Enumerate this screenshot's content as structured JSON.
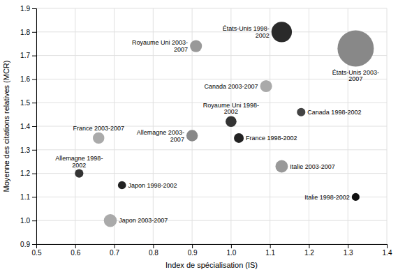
{
  "chart_data": {
    "type": "scatter",
    "xlabel": "Index de spécialisation (IS)",
    "ylabel": "Moyenne des citations relatives (MCR)",
    "annotations": [
      "États-Unis 1998-\n2002",
      "États-Unis 2003-\n2007",
      "Royaume Uni 2003-\n2007",
      "Canada 2003-2007",
      "Canada 1998-2002",
      "Royaume Uni 1998-\n2002",
      "France 1998-2002",
      "Allemagne 2003-\n2007",
      "France 2003-2007",
      "Allemagne 1998-\n2002",
      "Japon 1998-2002",
      "Italie 2003-2007",
      "Italie 1998-2002",
      "Japon 2003-2007"
    ],
    "x": [
      1.13,
      1.32,
      0.91,
      1.09,
      1.18,
      1.0,
      1.02,
      0.9,
      0.66,
      0.61,
      0.72,
      1.13,
      1.32,
      0.69
    ],
    "values": [
      1.8,
      1.73,
      1.74,
      1.57,
      1.46,
      1.42,
      1.35,
      1.36,
      1.35,
      1.2,
      1.15,
      1.23,
      1.1,
      1.0
    ],
    "sizes": [
      350,
      1100,
      120,
      120,
      60,
      100,
      80,
      110,
      110,
      60,
      55,
      130,
      50,
      140
    ],
    "colors": [
      "#2a2a2a",
      "#888888",
      "#999999",
      "#aaaaaa",
      "#444444",
      "#333333",
      "#222222",
      "#888888",
      "#aaaaaa",
      "#333333",
      "#222222",
      "#999999",
      "#111111",
      "#aaaaaa"
    ],
    "xlim": [
      0.5,
      1.4
    ],
    "ylim": [
      0.9,
      1.9
    ],
    "xticks": [
      0.5,
      0.6,
      0.7,
      0.8,
      0.9,
      {
        "value": 1.0,
        "label": "1.0"
      },
      1.1,
      1.2,
      1.3,
      1.4
    ],
    "yticks": [
      0.9,
      {
        "value": 1.0,
        "label": "1.0"
      },
      1.1,
      1.2,
      1.3,
      1.4,
      1.5,
      1.6,
      1.7,
      1.8,
      1.9
    ],
    "grid": true
  }
}
